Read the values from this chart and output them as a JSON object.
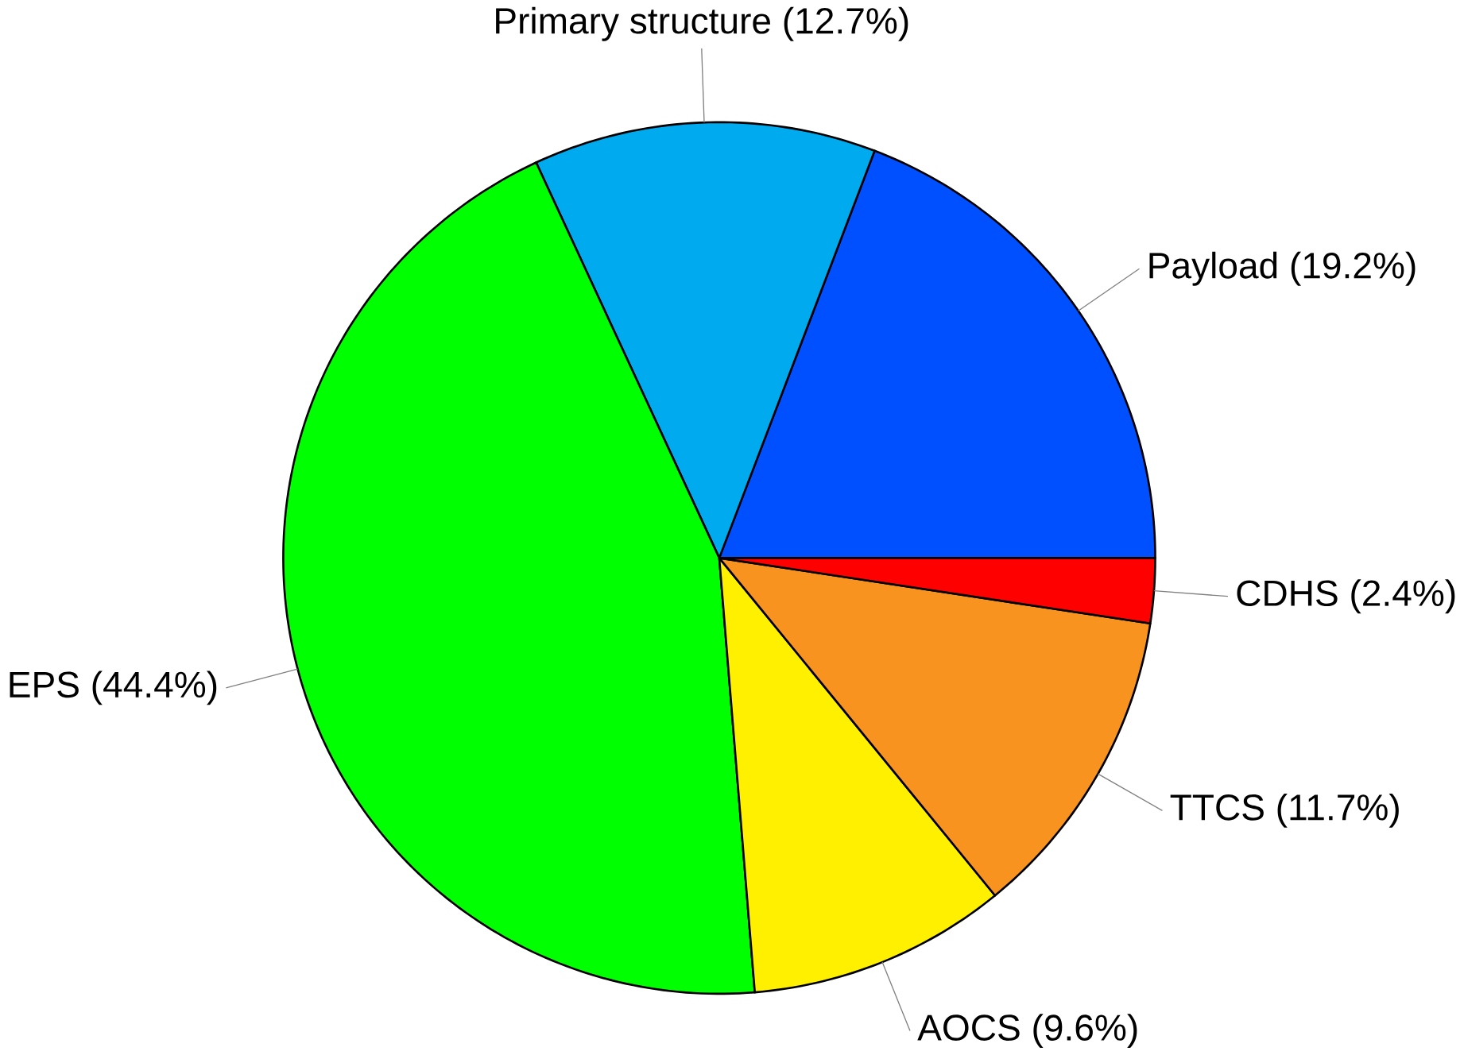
{
  "chart_data": {
    "type": "pie",
    "categories": [
      "Payload (19.2%)",
      "Primary structure (12.7%)",
      "EPS (44.4%)",
      "AOCS (9.6%)",
      "TTCS (11.7%)",
      "CDHS (2.4%)"
    ],
    "values": [
      19.2,
      12.7,
      44.4,
      9.6,
      11.7,
      2.4
    ],
    "colors": [
      "#0050ff",
      "#00aaee",
      "#00ff00",
      "#fff000",
      "#f7931e",
      "#ff0000"
    ]
  }
}
